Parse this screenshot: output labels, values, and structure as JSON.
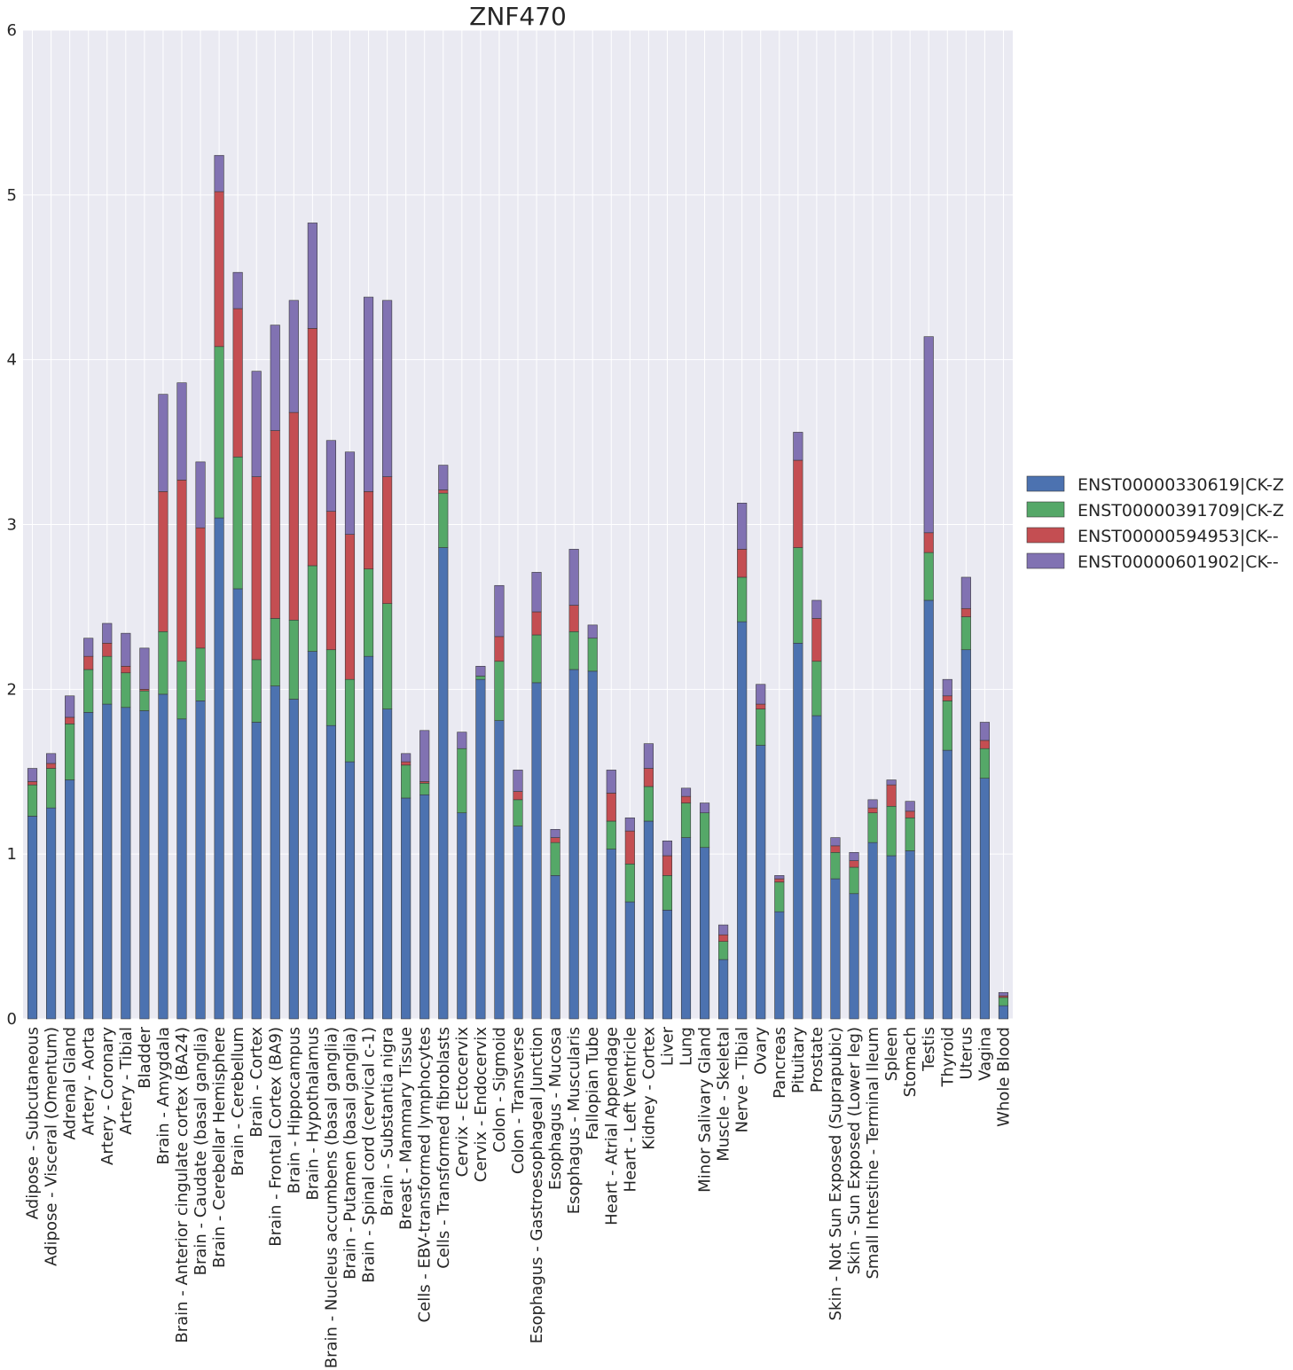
{
  "chart_data": {
    "type": "bar",
    "stacked": true,
    "title": "ZNF470",
    "xlabel": "",
    "ylabel": "",
    "ylim": [
      0,
      6
    ],
    "yticks": [
      0,
      1,
      2,
      3,
      4,
      5,
      6
    ],
    "grid": true,
    "legend_position": "right",
    "categories": [
      "Adipose - Subcutaneous",
      "Adipose - Visceral (Omentum)",
      "Adrenal Gland",
      "Artery - Aorta",
      "Artery - Coronary",
      "Artery - Tibial",
      "Bladder",
      "Brain - Amygdala",
      "Brain - Anterior cingulate cortex (BA24)",
      "Brain - Caudate (basal ganglia)",
      "Brain - Cerebellar Hemisphere",
      "Brain - Cerebellum",
      "Brain - Cortex",
      "Brain - Frontal Cortex (BA9)",
      "Brain - Hippocampus",
      "Brain - Hypothalamus",
      "Brain - Nucleus accumbens (basal ganglia)",
      "Brain - Putamen (basal ganglia)",
      "Brain - Spinal cord (cervical c-1)",
      "Brain - Substantia nigra",
      "Breast - Mammary Tissue",
      "Cells - EBV-transformed lymphocytes",
      "Cells - Transformed fibroblasts",
      "Cervix - Ectocervix",
      "Cervix - Endocervix",
      "Colon - Sigmoid",
      "Colon - Transverse",
      "Esophagus - Gastroesophageal Junction",
      "Esophagus - Mucosa",
      "Esophagus - Muscularis",
      "Fallopian Tube",
      "Heart - Atrial Appendage",
      "Heart - Left Ventricle",
      "Kidney - Cortex",
      "Liver",
      "Lung",
      "Minor Salivary Gland",
      "Muscle - Skeletal",
      "Nerve - Tibial",
      "Ovary",
      "Pancreas",
      "Pituitary",
      "Prostate",
      "Skin - Not Sun Exposed (Suprapubic)",
      "Skin - Sun Exposed (Lower leg)",
      "Small Intestine - Terminal Ileum",
      "Spleen",
      "Stomach",
      "Testis",
      "Thyroid",
      "Uterus",
      "Vagina",
      "Whole Blood"
    ],
    "series": [
      {
        "name": "ENST00000330619|CK-Z",
        "color": "#4c72b0",
        "values": [
          1.23,
          1.28,
          1.45,
          1.86,
          1.91,
          1.89,
          1.87,
          1.97,
          1.82,
          1.93,
          3.04,
          2.61,
          1.8,
          2.02,
          1.94,
          2.23,
          1.78,
          1.56,
          2.2,
          1.88,
          1.34,
          1.36,
          2.86,
          1.25,
          2.06,
          1.81,
          1.17,
          2.04,
          0.87,
          2.12,
          2.11,
          1.03,
          0.71,
          1.2,
          0.66,
          1.1,
          1.04,
          0.36,
          2.41,
          1.66,
          0.65,
          2.28,
          1.84,
          0.85,
          0.76,
          1.07,
          0.99,
          1.02,
          2.54,
          1.63,
          2.24,
          1.46,
          0.08
        ]
      },
      {
        "name": "ENST00000391709|CK-Z",
        "color": "#55a868",
        "values": [
          0.19,
          0.24,
          0.34,
          0.26,
          0.29,
          0.21,
          0.12,
          0.38,
          0.35,
          0.32,
          1.04,
          0.8,
          0.38,
          0.41,
          0.48,
          0.52,
          0.46,
          0.5,
          0.53,
          0.64,
          0.2,
          0.07,
          0.33,
          0.39,
          0.02,
          0.36,
          0.16,
          0.29,
          0.2,
          0.23,
          0.2,
          0.17,
          0.23,
          0.21,
          0.21,
          0.21,
          0.21,
          0.11,
          0.27,
          0.22,
          0.18,
          0.58,
          0.33,
          0.16,
          0.16,
          0.18,
          0.3,
          0.2,
          0.29,
          0.3,
          0.2,
          0.18,
          0.05
        ]
      },
      {
        "name": "ENST00000594953|CK--",
        "color": "#c44e52",
        "values": [
          0.02,
          0.03,
          0.04,
          0.08,
          0.08,
          0.04,
          0.01,
          0.85,
          1.1,
          0.73,
          0.94,
          0.9,
          1.11,
          1.14,
          1.26,
          1.44,
          0.84,
          0.88,
          0.47,
          0.77,
          0.02,
          0.01,
          0.02,
          0.0,
          0.0,
          0.15,
          0.05,
          0.14,
          0.03,
          0.16,
          0.0,
          0.17,
          0.2,
          0.11,
          0.12,
          0.04,
          0.0,
          0.04,
          0.17,
          0.03,
          0.02,
          0.53,
          0.26,
          0.04,
          0.04,
          0.03,
          0.13,
          0.04,
          0.12,
          0.03,
          0.05,
          0.05,
          0.01
        ]
      },
      {
        "name": "ENST00000601902|CK--",
        "color": "#8172b2",
        "values": [
          0.08,
          0.06,
          0.13,
          0.11,
          0.12,
          0.2,
          0.25,
          0.59,
          0.59,
          0.4,
          0.22,
          0.22,
          0.64,
          0.64,
          0.68,
          0.64,
          0.43,
          0.5,
          1.18,
          1.07,
          0.05,
          0.31,
          0.15,
          0.1,
          0.06,
          0.31,
          0.13,
          0.24,
          0.05,
          0.34,
          0.08,
          0.14,
          0.08,
          0.15,
          0.09,
          0.05,
          0.06,
          0.06,
          0.28,
          0.12,
          0.02,
          0.17,
          0.11,
          0.05,
          0.05,
          0.05,
          0.03,
          0.06,
          1.19,
          0.1,
          0.19,
          0.11,
          0.02
        ]
      }
    ]
  }
}
